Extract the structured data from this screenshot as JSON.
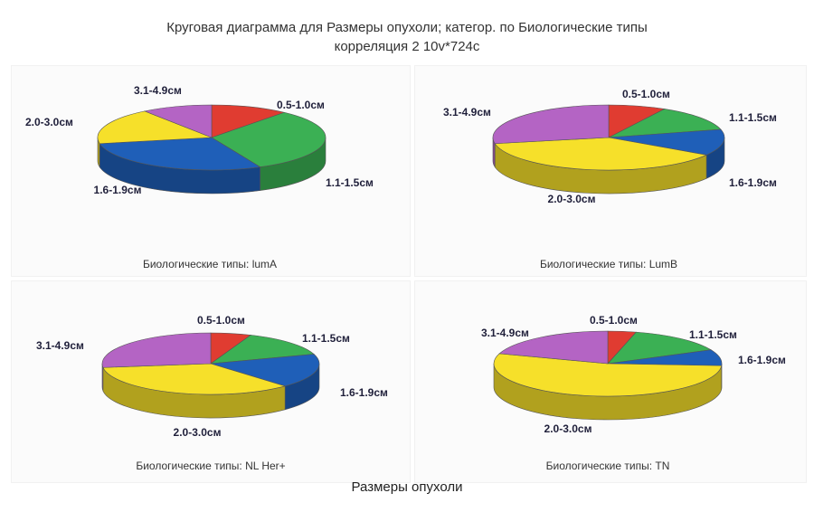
{
  "header": {
    "title_line1": "Круговая диаграмма для Размеры опухоли; категор. по Биологические типы",
    "title_line2": "корреляция 2 10v*724c"
  },
  "footer": {
    "xlabel": "Размеры опухоли"
  },
  "colors": {
    "0.5-1.0см": "#e03c31",
    "1.1-1.5см": "#3bb054",
    "1.6-1.9см": "#1f5fb8",
    "2.0-3.0см": "#f6e02a",
    "3.1-4.9см": "#b464c4"
  },
  "chart_data": [
    {
      "type": "pie",
      "subtitle": "Биологические типы: lumA",
      "categories": [
        "0.5-1.0см",
        "1.1-1.5см",
        "1.6-1.9см",
        "2.0-3.0см",
        "3.1-4.9см"
      ],
      "values": [
        11,
        32,
        29,
        18,
        10
      ]
    },
    {
      "type": "pie",
      "subtitle": "Биологические типы: LumB",
      "categories": [
        "0.5-1.0см",
        "1.1-1.5см",
        "1.6-1.9см",
        "2.0-3.0см",
        "3.1-4.9см"
      ],
      "values": [
        8,
        13,
        13,
        38,
        28
      ]
    },
    {
      "type": "pie",
      "subtitle": "Биологические типы: NL Her+",
      "categories": [
        "0.5-1.0см",
        "1.1-1.5см",
        "1.6-1.9см",
        "2.0-3.0см",
        "3.1-4.9см"
      ],
      "values": [
        6,
        14,
        18,
        35,
        27
      ]
    },
    {
      "type": "pie",
      "subtitle": "Биологические типы: TN",
      "categories": [
        "0.5-1.0см",
        "1.1-1.5см",
        "1.6-1.9см",
        "2.0-3.0см",
        "3.1-4.9см"
      ],
      "values": [
        4,
        14,
        8,
        54,
        20
      ]
    }
  ]
}
